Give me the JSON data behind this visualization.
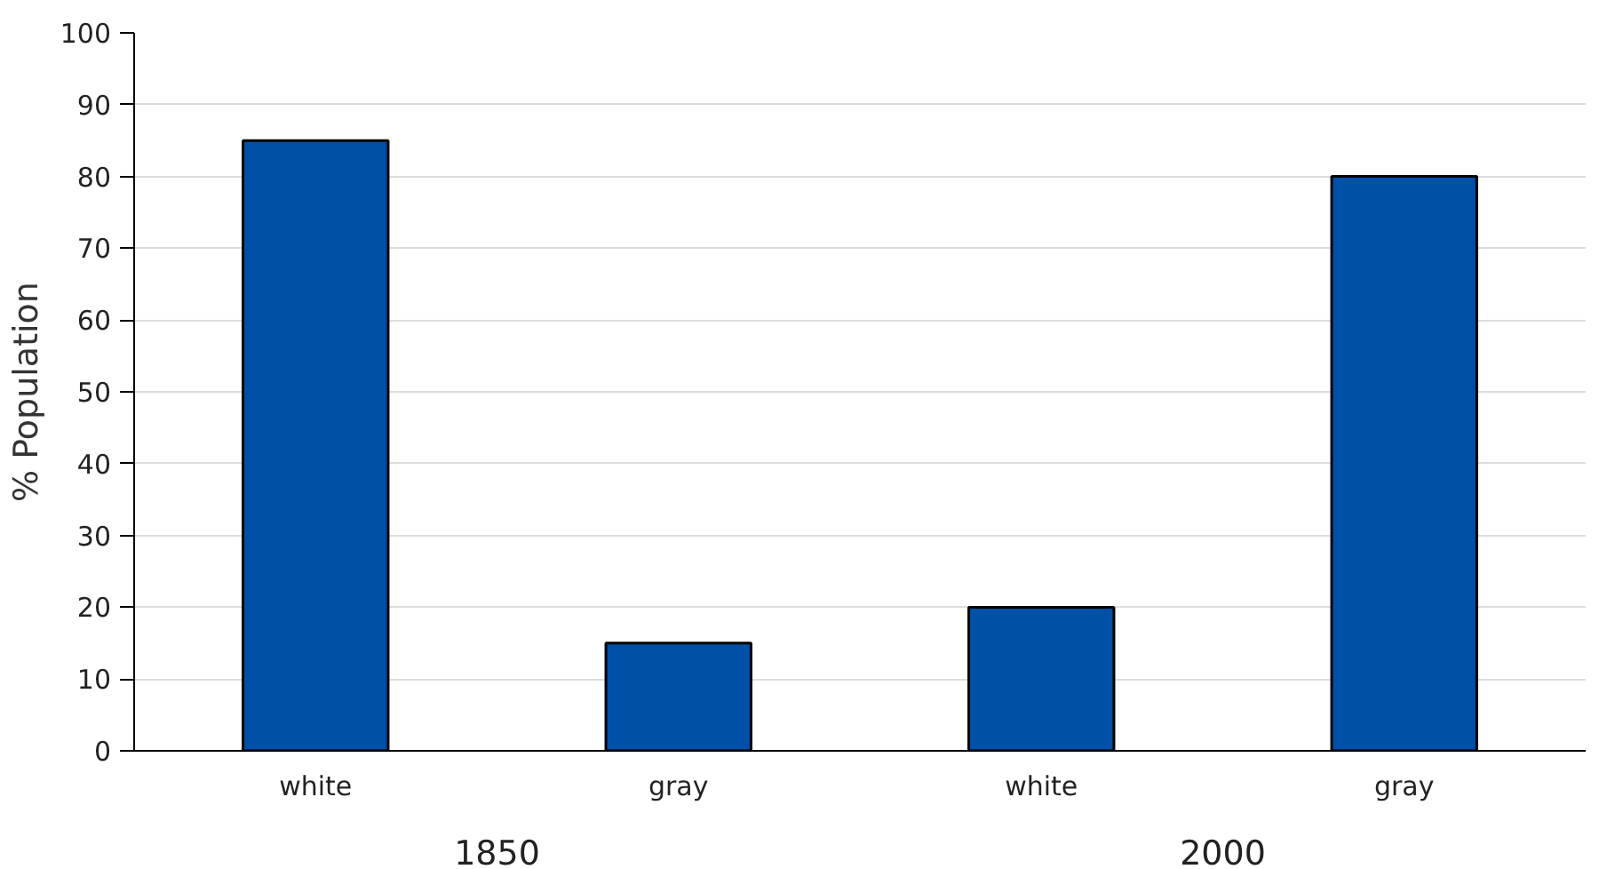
{
  "chart_data": {
    "type": "bar",
    "ylabel": "% Population",
    "categories": [
      "white",
      "gray",
      "white",
      "gray"
    ],
    "values": [
      85,
      15,
      20,
      80
    ],
    "color": "#0050a8",
    "ylim": [
      0,
      100
    ],
    "yticks": [
      0,
      10,
      20,
      30,
      40,
      50,
      60,
      70,
      80,
      90,
      100
    ],
    "grid": "y",
    "annotations": [
      "1850",
      "2000"
    ]
  }
}
